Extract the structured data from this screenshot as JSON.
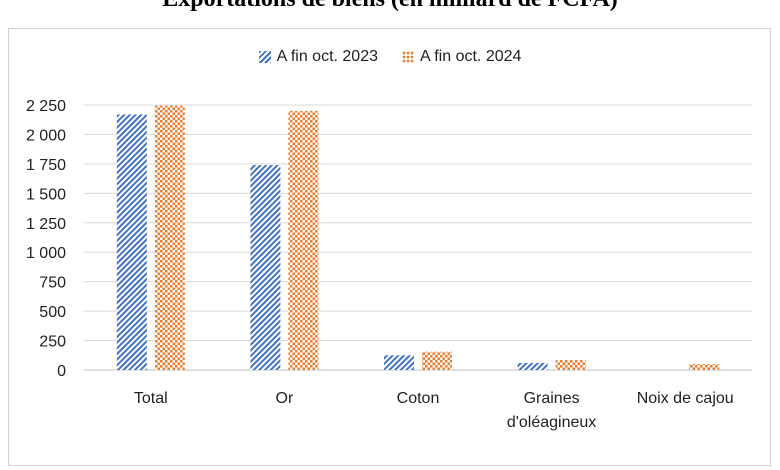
{
  "title": "Exportations de biens (en milliard de FCFA)",
  "chart_data": {
    "type": "bar",
    "title": "Exportations de biens (en milliard de FCFA)",
    "xlabel": "",
    "ylabel": "",
    "ylim": [
      0,
      2250
    ],
    "yticks": [
      0,
      250,
      500,
      750,
      1000,
      1250,
      1500,
      1750,
      2000,
      2250
    ],
    "ytick_labels": [
      "0",
      "250",
      "500",
      "750",
      "1 000",
      "1 250",
      "1 500",
      "1 750",
      "2 000",
      "2 250"
    ],
    "categories": [
      "Total",
      "Or",
      "Coton",
      "Graines d'oléagineux",
      "Noix de cajou"
    ],
    "category_lines": [
      [
        "Total"
      ],
      [
        "Or"
      ],
      [
        "Coton"
      ],
      [
        "Graines",
        "d'oléagineux"
      ],
      [
        "Noix de cajou"
      ]
    ],
    "series": [
      {
        "name": "A fin oct. 2023",
        "color": "#4472c4",
        "pattern": "diagonal-stripes",
        "values": [
          2170,
          1740,
          125,
          60,
          0
        ]
      },
      {
        "name": "A fin oct. 2024",
        "color": "#ed7d31",
        "pattern": "dots",
        "values": [
          2245,
          2200,
          155,
          85,
          50
        ]
      }
    ],
    "grid": true,
    "legend": "top-center"
  }
}
